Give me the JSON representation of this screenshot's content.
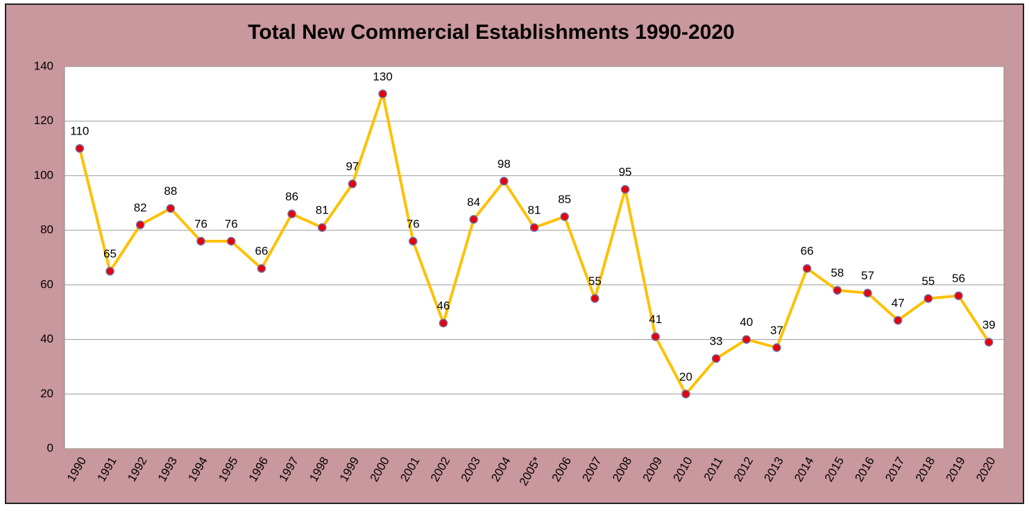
{
  "chart_data": {
    "type": "line",
    "title": "Total New Commercial Establishments 1990-2020",
    "categories": [
      "1990",
      "1991",
      "1992",
      "1993",
      "1994",
      "1995",
      "1996",
      "1997",
      "1998",
      "1999",
      "2000",
      "2001",
      "2002",
      "2003",
      "2004",
      "2005*",
      "2006",
      "2007",
      "2008",
      "2009",
      "2010",
      "2011",
      "2012",
      "2013",
      "2014",
      "2015",
      "2016",
      "2017",
      "2018",
      "2019",
      "2020"
    ],
    "values": [
      110,
      65,
      82,
      88,
      76,
      76,
      66,
      86,
      81,
      97,
      130,
      76,
      46,
      84,
      98,
      81,
      85,
      55,
      95,
      41,
      20,
      33,
      40,
      37,
      66,
      58,
      57,
      47,
      55,
      56,
      39
    ],
    "color": "#ffc000",
    "marker_color": "#e8000b",
    "ylim": [
      0,
      140
    ],
    "yticks": [
      0,
      20,
      40,
      60,
      80,
      100,
      120,
      140
    ],
    "grid": true
  }
}
